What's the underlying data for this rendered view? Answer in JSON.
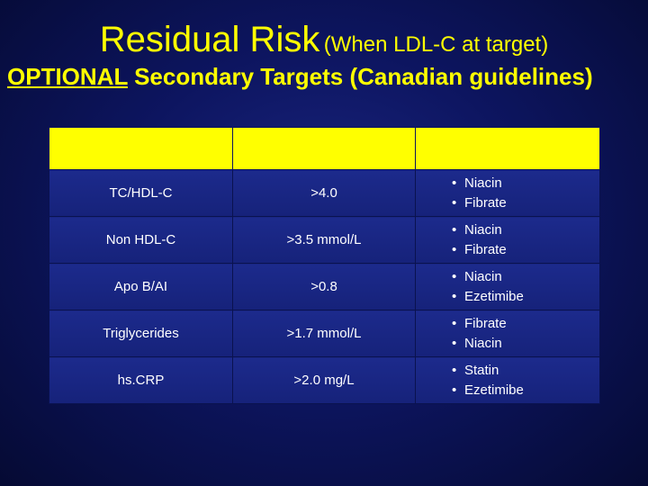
{
  "title": {
    "main": "Residual Risk",
    "paren": "(When LDL-C at target)"
  },
  "subtitle": {
    "underlined": "OPTIONAL",
    "rest": " Secondary Targets (Canadian guidelines)"
  },
  "table": {
    "headers": [
      "",
      "",
      ""
    ],
    "rows": [
      {
        "param": "TC/HDL-C",
        "target": ">4.0",
        "therapy": [
          "Niacin",
          "Fibrate"
        ]
      },
      {
        "param": "Non HDL-C",
        "target": ">3.5 mmol/L",
        "therapy": [
          "Niacin",
          "Fibrate"
        ]
      },
      {
        "param": "Apo B/AI",
        "target": ">0.8",
        "therapy": [
          "Niacin",
          "Ezetimibe"
        ]
      },
      {
        "param": "Triglycerides",
        "target": ">1.7 mmol/L",
        "therapy": [
          "Fibrate",
          "Niacin"
        ]
      },
      {
        "param": "hs.CRP",
        "target": ">2.0 mg/L",
        "therapy": [
          "Statin",
          "Ezetimibe"
        ]
      }
    ]
  },
  "colors": {
    "accent": "#ffff00",
    "background": "#0d1560",
    "cell": "#1c2a8c"
  }
}
